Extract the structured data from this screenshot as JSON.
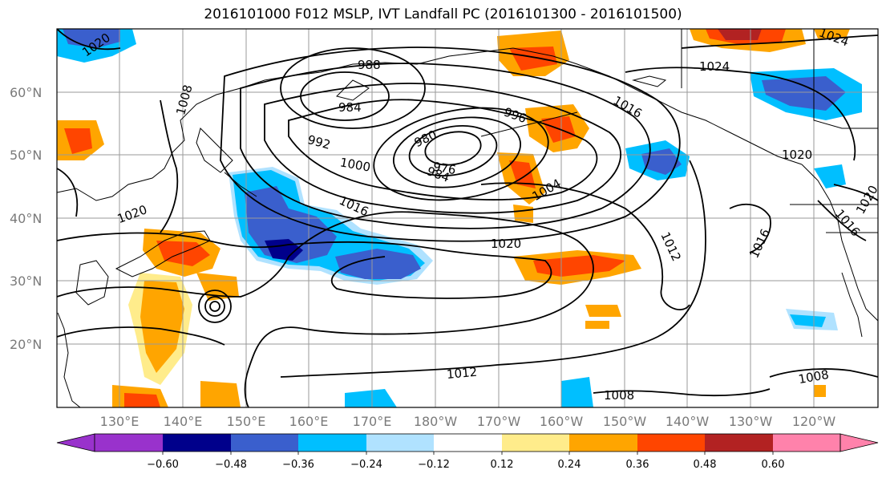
{
  "title": "2016101000 F012 MSLP, IVT Landfall PC (2016101300 - 2016101500)",
  "map": {
    "lat_labels": [
      "60°N",
      "50°N",
      "40°N",
      "30°N",
      "20°N"
    ],
    "lon_labels": [
      "130°E",
      "140°E",
      "150°E",
      "160°E",
      "170°E",
      "180°W",
      "170°W",
      "160°W",
      "150°W",
      "140°W",
      "130°W",
      "120°W"
    ],
    "contour_labels": [
      "1020",
      "988",
      "984",
      "1008",
      "980",
      "976",
      "984",
      "992",
      "1000",
      "996",
      "1016",
      "1024",
      "1024",
      "1020",
      "1004",
      "1020",
      "1016",
      "1020",
      "1012",
      "1016",
      "1016",
      "1020",
      "1012",
      "1008",
      "1008"
    ],
    "colors": {
      "land_outline": "#000000",
      "grid": "#9a9a9a",
      "contour": "#000000"
    }
  },
  "colorbar": {
    "ticks": [
      "−0.60",
      "−0.48",
      "−0.36",
      "−0.24",
      "−0.12",
      "0.12",
      "0.24",
      "0.36",
      "0.48",
      "0.60"
    ],
    "colors": [
      "#9932cc",
      "#00008b",
      "#3a5fcd",
      "#00bfff",
      "#b0e2ff",
      "#ffffff",
      "#ffec8b",
      "#ffa500",
      "#ff4500",
      "#b22222",
      "#ff82ab"
    ]
  }
}
